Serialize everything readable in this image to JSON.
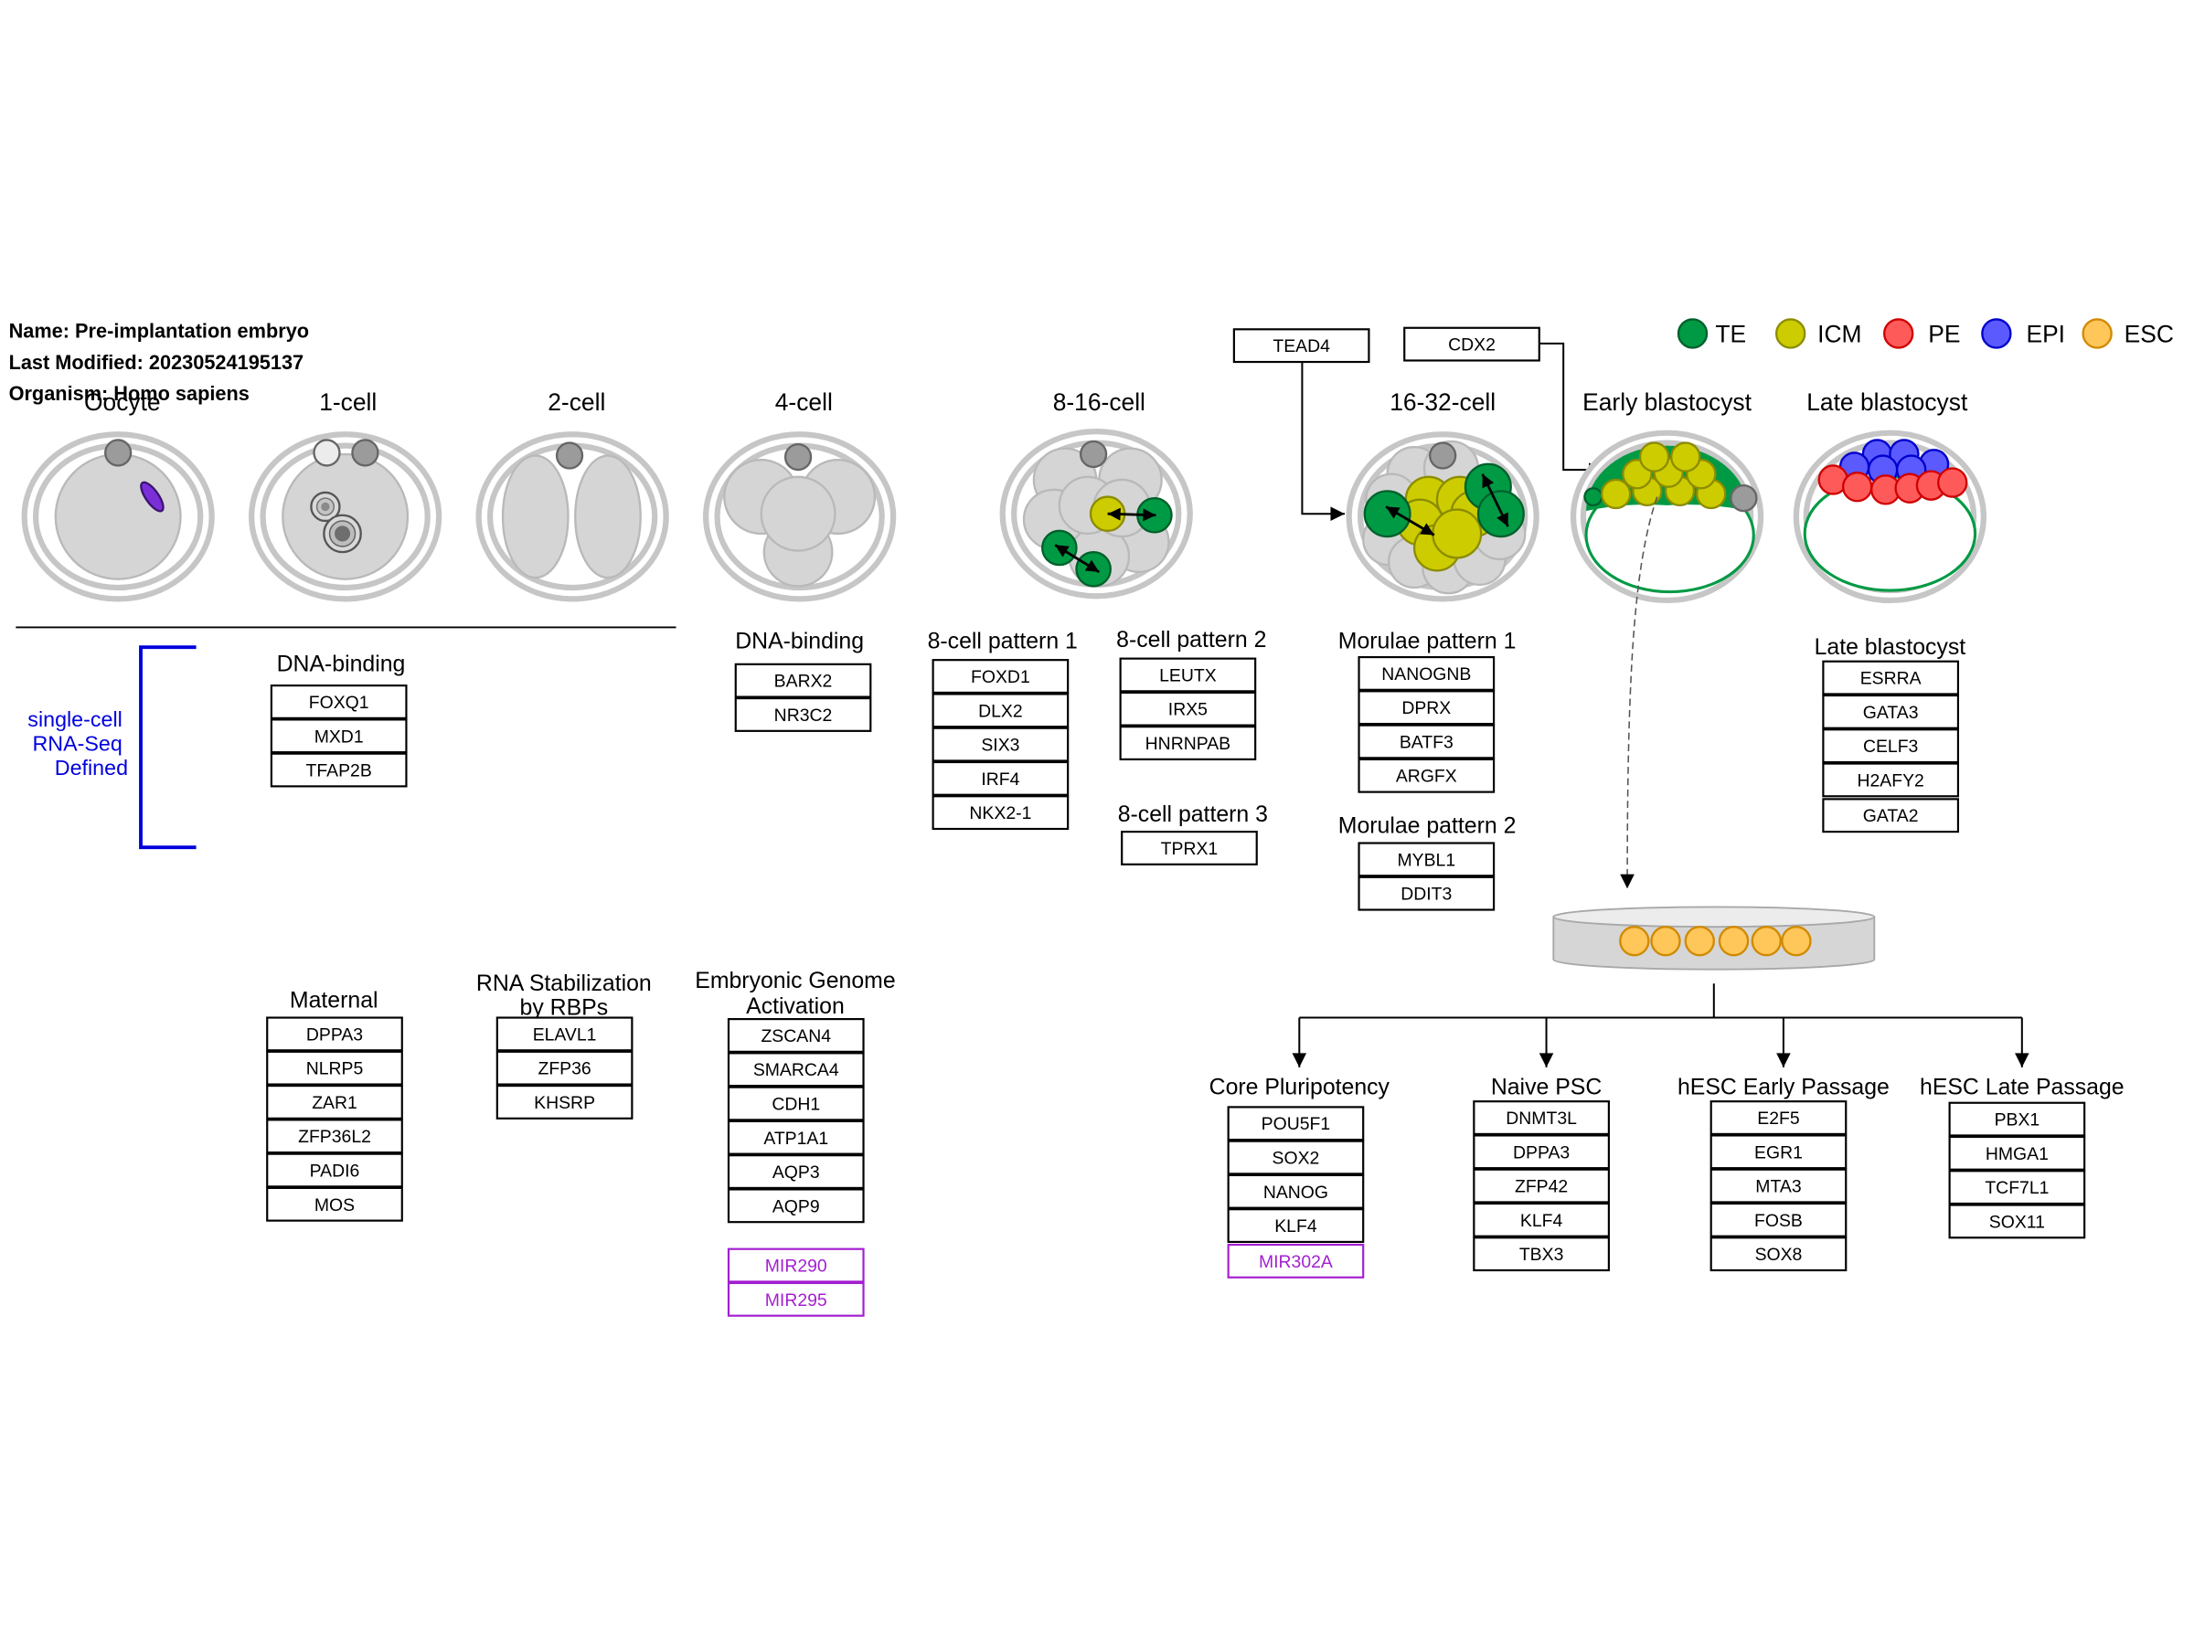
{
  "info": {
    "name": "Name: Pre-implantation embryo",
    "last_modified": "Last Modified: 20230524195137",
    "organism": "Organism: Homo sapiens"
  },
  "stages": [
    "Oocyte",
    "1-cell",
    "2-cell",
    "4-cell",
    "8-16-cell",
    "16-32-cell",
    "Early blastocyst",
    "Late blastocyst"
  ],
  "legend": [
    {
      "label": "TE",
      "color": "#009a44",
      "stroke": "#00602b"
    },
    {
      "label": "ICM",
      "color": "#cccc00",
      "stroke": "#8c8c00"
    },
    {
      "label": "PE",
      "color": "#ff5a5a",
      "stroke": "#d00000"
    },
    {
      "label": "EPI",
      "color": "#5a5aff",
      "stroke": "#0000cc"
    },
    {
      "label": "ESC",
      "color": "#ffc65a",
      "stroke": "#d08a00"
    }
  ],
  "regulators": [
    "TEAD4",
    "CDX2"
  ],
  "bracket_label": [
    "single-cell",
    "RNA-Seq",
    "Defined"
  ],
  "colors": {
    "bracket": "#0000dd",
    "mirna": "#a31fd0"
  },
  "groups": [
    {
      "title": [
        "DNA-binding"
      ],
      "genes": [
        "FOXQ1",
        "MXD1",
        "TFAP2B"
      ]
    },
    {
      "title": [
        "DNA-binding"
      ],
      "genes": [
        "BARX2",
        "NR3C2"
      ]
    },
    {
      "title": [
        "8-cell pattern 1"
      ],
      "genes": [
        "FOXD1",
        "DLX2",
        "SIX3",
        "IRF4",
        "NKX2-1"
      ]
    },
    {
      "title": [
        "8-cell pattern 2"
      ],
      "genes": [
        "LEUTX",
        "IRX5",
        "HNRNPAB"
      ]
    },
    {
      "title": [
        "8-cell pattern 3"
      ],
      "genes": [
        "TPRX1"
      ]
    },
    {
      "title": [
        "Morulae pattern 1"
      ],
      "genes": [
        "NANOGNB",
        "DPRX",
        "BATF3",
        "ARGFX"
      ]
    },
    {
      "title": [
        "Morulae pattern 2"
      ],
      "genes": [
        "MYBL1",
        "DDIT3"
      ]
    },
    {
      "title": [
        "Late blastocyst"
      ],
      "genes": [
        "ESRRA",
        "GATA3",
        "CELF3",
        "H2AFY2",
        "GATA2"
      ]
    },
    {
      "title": [
        "Maternal"
      ],
      "genes": [
        "DPPA3",
        "NLRP5",
        "ZAR1",
        "ZFP36L2",
        "PADI6",
        "MOS"
      ]
    },
    {
      "title": [
        "RNA Stabilization",
        "by RBPs"
      ],
      "genes": [
        "ELAVL1",
        "ZFP36",
        "KHSRP"
      ]
    },
    {
      "title": [
        "Embryonic Genome",
        "Activation"
      ],
      "genes": [
        "ZSCAN4",
        "SMARCA4",
        "CDH1",
        "ATP1A1",
        "AQP3",
        "AQP9"
      ],
      "mirnas": [
        "MIR290",
        "MIR295"
      ]
    },
    {
      "title": [
        "Core Pluripotency"
      ],
      "genes": [
        "POU5F1",
        "SOX2",
        "NANOG",
        "KLF4"
      ],
      "mirnas": [
        "MIR302A"
      ]
    },
    {
      "title": [
        "Naive PSC"
      ],
      "genes": [
        "DNMT3L",
        "DPPA3",
        "ZFP42",
        "KLF4",
        "TBX3"
      ]
    },
    {
      "title": [
        "hESC Early Passage"
      ],
      "genes": [
        "E2F5",
        "EGR1",
        "MTA3",
        "FOSB",
        "SOX8"
      ]
    },
    {
      "title": [
        "hESC Late Passage"
      ],
      "genes": [
        "PBX1",
        "HMGA1",
        "TCF7L1",
        "SOX11"
      ]
    }
  ]
}
